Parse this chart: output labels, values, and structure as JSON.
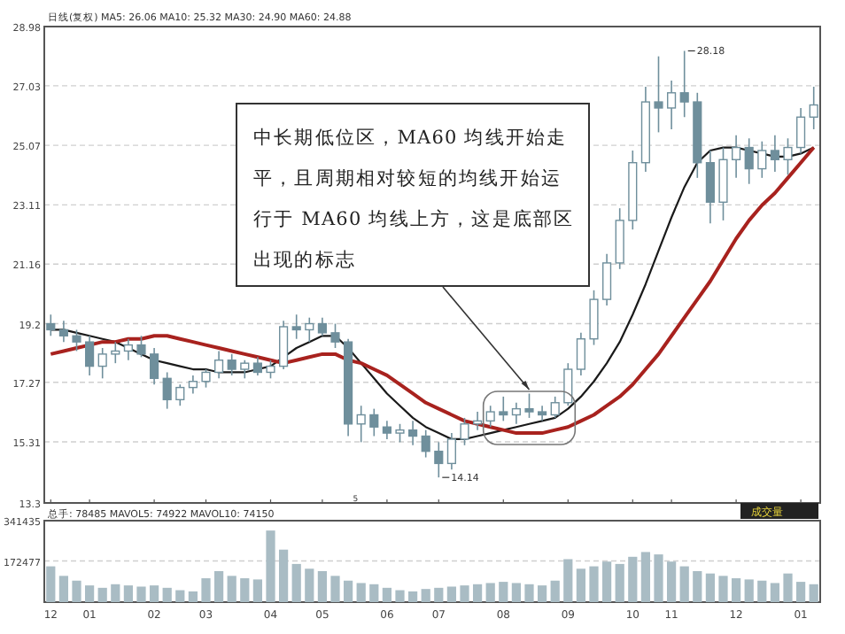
{
  "chart_data": [
    {
      "type": "candlestick",
      "color": "#6f8f9c",
      "tick_labels": "y",
      "grid": "y",
      "ylim": [
        13.3,
        28.98
      ],
      "yticks": [
        13.3,
        15.31,
        17.27,
        19.2,
        21.16,
        23.11,
        25.07,
        27.03,
        28.98
      ],
      "categories": [
        "12",
        null,
        null,
        "01",
        null,
        null,
        null,
        null,
        "02",
        null,
        null,
        null,
        "03",
        null,
        null,
        null,
        null,
        "04",
        null,
        null,
        null,
        "05",
        null,
        null,
        null,
        null,
        "06",
        null,
        null,
        null,
        "07",
        null,
        null,
        null,
        null,
        "08",
        null,
        null,
        null,
        null,
        "09",
        null,
        null,
        null,
        null,
        "10",
        null,
        null,
        "11",
        null,
        null,
        null,
        null,
        "12",
        null,
        null,
        null,
        null,
        "01",
        null
      ],
      "ohlc": [
        [
          19.2,
          19.5,
          18.8,
          19.0
        ],
        [
          19.0,
          19.3,
          18.6,
          18.8
        ],
        [
          18.8,
          19.0,
          18.3,
          18.6
        ],
        [
          18.6,
          18.8,
          17.5,
          17.8
        ],
        [
          17.8,
          18.4,
          17.4,
          18.2
        ],
        [
          18.2,
          18.6,
          17.9,
          18.3
        ],
        [
          18.3,
          18.7,
          18.0,
          18.5
        ],
        [
          18.5,
          18.8,
          18.1,
          18.2
        ],
        [
          18.2,
          18.4,
          17.2,
          17.4
        ],
        [
          17.4,
          17.6,
          16.4,
          16.7
        ],
        [
          16.7,
          17.2,
          16.5,
          17.1
        ],
        [
          17.1,
          17.5,
          16.9,
          17.3
        ],
        [
          17.3,
          17.7,
          17.1,
          17.6
        ],
        [
          17.6,
          18.3,
          17.4,
          18.0
        ],
        [
          18.0,
          18.2,
          17.5,
          17.7
        ],
        [
          17.7,
          18.0,
          17.4,
          17.9
        ],
        [
          17.9,
          18.1,
          17.5,
          17.6
        ],
        [
          17.6,
          18.0,
          17.4,
          17.8
        ],
        [
          17.8,
          19.3,
          17.7,
          19.1
        ],
        [
          19.1,
          19.5,
          18.7,
          19.0
        ],
        [
          19.0,
          19.4,
          18.6,
          19.2
        ],
        [
          19.2,
          19.4,
          18.8,
          18.9
        ],
        [
          18.9,
          19.2,
          18.4,
          18.6
        ],
        [
          18.6,
          18.7,
          15.5,
          15.9
        ],
        [
          15.9,
          16.5,
          15.3,
          16.2
        ],
        [
          16.2,
          16.4,
          15.5,
          15.8
        ],
        [
          15.8,
          16.0,
          15.4,
          15.6
        ],
        [
          15.6,
          15.9,
          15.3,
          15.7
        ],
        [
          15.7,
          16.0,
          15.2,
          15.5
        ],
        [
          15.5,
          15.7,
          14.8,
          15.0
        ],
        [
          15.0,
          15.3,
          14.14,
          14.6
        ],
        [
          14.6,
          15.6,
          14.4,
          15.4
        ],
        [
          15.4,
          16.1,
          15.2,
          15.9
        ],
        [
          15.9,
          16.3,
          15.7,
          16.0
        ],
        [
          16.0,
          16.5,
          15.8,
          16.3
        ],
        [
          16.3,
          16.8,
          16.0,
          16.2
        ],
        [
          16.2,
          16.6,
          15.9,
          16.4
        ],
        [
          16.4,
          16.9,
          16.1,
          16.3
        ],
        [
          16.3,
          16.5,
          16.0,
          16.2
        ],
        [
          16.2,
          16.8,
          16.1,
          16.6
        ],
        [
          16.6,
          17.9,
          16.5,
          17.7
        ],
        [
          17.7,
          18.9,
          17.5,
          18.7
        ],
        [
          18.7,
          20.3,
          18.5,
          20.0
        ],
        [
          20.0,
          21.5,
          19.8,
          21.2
        ],
        [
          21.2,
          23.0,
          21.0,
          22.6
        ],
        [
          22.6,
          24.9,
          22.3,
          24.5
        ],
        [
          24.5,
          27.0,
          24.2,
          26.5
        ],
        [
          26.5,
          28.0,
          25.5,
          26.3
        ],
        [
          26.3,
          27.2,
          25.6,
          26.8
        ],
        [
          26.8,
          28.18,
          26.0,
          26.5
        ],
        [
          26.5,
          26.8,
          24.0,
          24.5
        ],
        [
          24.5,
          24.9,
          22.5,
          23.2
        ],
        [
          23.2,
          25.0,
          22.6,
          24.6
        ],
        [
          24.6,
          25.4,
          24.0,
          25.0
        ],
        [
          25.0,
          25.3,
          23.8,
          24.3
        ],
        [
          24.3,
          25.2,
          24.0,
          24.9
        ],
        [
          24.9,
          25.4,
          24.2,
          24.6
        ],
        [
          24.6,
          25.3,
          24.1,
          25.0
        ],
        [
          25.0,
          26.3,
          24.8,
          26.0
        ],
        [
          26.0,
          27.0,
          25.6,
          26.4
        ]
      ],
      "series": [
        {
          "type": "line",
          "color": "#1a1a1a",
          "values": [
            19.0,
            19.0,
            18.9,
            18.8,
            18.7,
            18.6,
            18.4,
            18.2,
            18.0,
            17.9,
            17.8,
            17.7,
            17.7,
            17.6,
            17.6,
            17.6,
            17.7,
            17.8,
            18.1,
            18.4,
            18.6,
            18.8,
            18.8,
            18.4,
            17.9,
            17.4,
            16.9,
            16.5,
            16.1,
            15.8,
            15.6,
            15.4,
            15.4,
            15.5,
            15.6,
            15.7,
            15.8,
            15.9,
            16.0,
            16.1,
            16.4,
            16.8,
            17.3,
            17.9,
            18.6,
            19.5,
            20.5,
            21.6,
            22.7,
            23.7,
            24.5,
            24.9,
            25.0,
            25.0,
            24.9,
            24.8,
            24.7,
            24.7,
            24.8,
            25.0
          ]
        },
        {
          "type": "line",
          "color": "#a8221e",
          "values": [
            18.2,
            18.3,
            18.4,
            18.5,
            18.6,
            18.6,
            18.7,
            18.7,
            18.8,
            18.8,
            18.7,
            18.6,
            18.5,
            18.4,
            18.3,
            18.2,
            18.1,
            18.0,
            17.9,
            18.0,
            18.1,
            18.2,
            18.2,
            18.0,
            17.9,
            17.7,
            17.5,
            17.2,
            16.9,
            16.6,
            16.4,
            16.2,
            16.0,
            15.9,
            15.8,
            15.7,
            15.6,
            15.6,
            15.6,
            15.7,
            15.8,
            16.0,
            16.2,
            16.5,
            16.8,
            17.2,
            17.7,
            18.2,
            18.8,
            19.4,
            20.0,
            20.6,
            21.3,
            22.0,
            22.6,
            23.1,
            23.5,
            24.0,
            24.5,
            25.0
          ]
        }
      ],
      "annotations": [
        "日线(复权) MA5: 26.06 MA10: 25.32 MA30: 24.90 MA60: 24.88",
        "中长期低位区，MA60 均线开始走平，且周期相对较短的均线开始运行于 MA60 均线上方，这是底部区出现的标志",
        "28.18",
        "14.14",
        "5"
      ]
    },
    {
      "type": "bar",
      "color": "#a9bcc4",
      "grid": "y",
      "ylim": [
        0,
        341435
      ],
      "yticks": [
        172477,
        341435
      ],
      "categories": [
        "12",
        null,
        null,
        "01",
        null,
        null,
        null,
        null,
        "02",
        null,
        null,
        null,
        "03",
        null,
        null,
        null,
        null,
        "04",
        null,
        null,
        null,
        "05",
        null,
        null,
        null,
        null,
        "06",
        null,
        null,
        null,
        "07",
        null,
        null,
        null,
        null,
        "08",
        null,
        null,
        null,
        null,
        "09",
        null,
        null,
        null,
        null,
        "10",
        null,
        null,
        "11",
        null,
        null,
        null,
        null,
        "12",
        null,
        null,
        null,
        null,
        "01",
        null
      ],
      "values": [
        150000,
        110000,
        90000,
        70000,
        60000,
        75000,
        70000,
        65000,
        70000,
        60000,
        50000,
        45000,
        100000,
        130000,
        110000,
        100000,
        95000,
        300000,
        220000,
        160000,
        140000,
        130000,
        110000,
        90000,
        80000,
        75000,
        60000,
        50000,
        45000,
        55000,
        60000,
        65000,
        70000,
        75000,
        80000,
        85000,
        80000,
        75000,
        70000,
        90000,
        180000,
        140000,
        150000,
        170000,
        160000,
        190000,
        210000,
        200000,
        170000,
        150000,
        130000,
        120000,
        110000,
        100000,
        95000,
        90000,
        80000,
        120000,
        85000,
        75000
      ],
      "annotations": [
        "总手: 78485 MAVOL5: 74922 MAVOL10: 74150",
        "成交量"
      ]
    }
  ]
}
